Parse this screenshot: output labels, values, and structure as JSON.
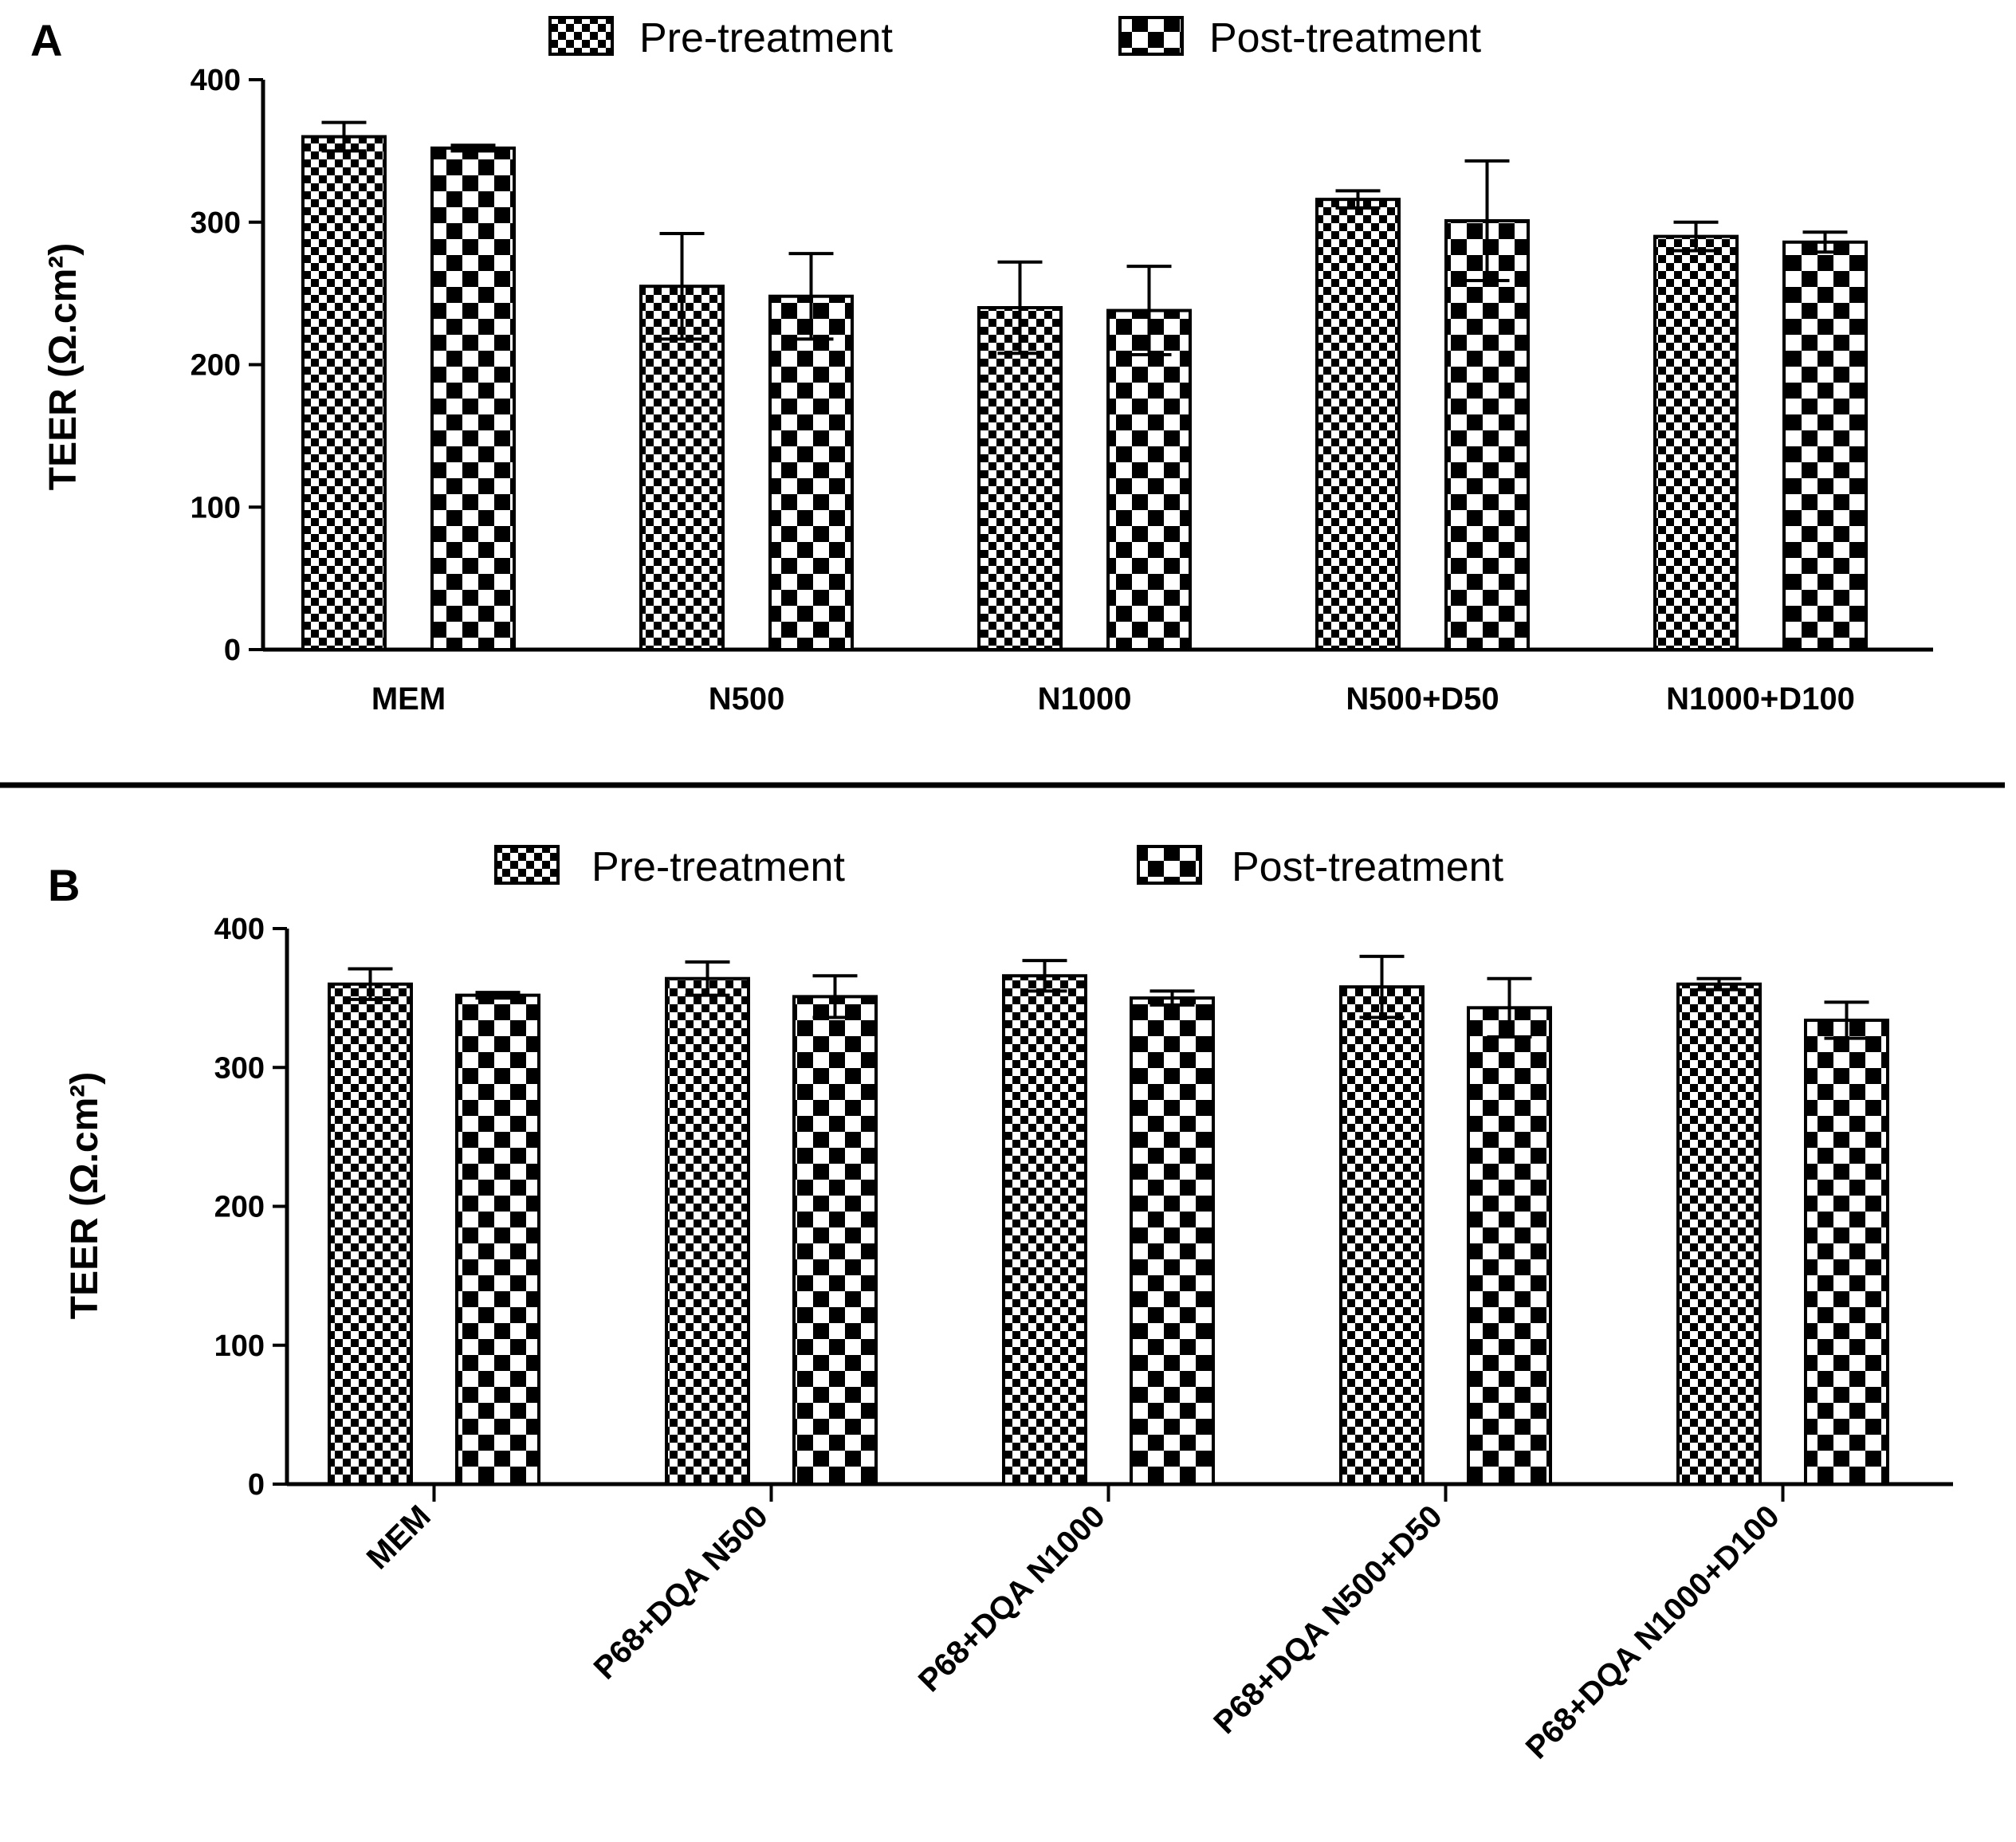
{
  "chart_data": [
    {
      "type": "bar",
      "panel": "A",
      "categories": [
        "MEM",
        "N500",
        "N1000",
        "N500+D50",
        "N1000+D100"
      ],
      "series": [
        {
          "name": "Pre-treatment",
          "values": [
            360,
            255,
            240,
            316,
            290
          ],
          "errors": [
            10,
            37,
            32,
            6,
            10
          ]
        },
        {
          "name": "Post-treatment",
          "values": [
            352,
            248,
            238,
            301,
            286
          ],
          "errors": [
            2,
            30,
            31,
            42,
            7
          ]
        }
      ],
      "title": "",
      "xlabel": "",
      "ylabel": "TEER (Ω.cm²)",
      "ylim": [
        0,
        400
      ],
      "yticks": [
        0,
        100,
        200,
        300,
        400
      ],
      "legend": "top-center"
    },
    {
      "type": "bar",
      "panel": "B",
      "categories": [
        "MEM",
        "P68+DQA N500",
        "P68+DQA N1000",
        "P68+DQA N500+D50",
        "P68+DQA N1000+D100"
      ],
      "series": [
        {
          "name": "Pre-treatment",
          "values": [
            360,
            364,
            366,
            358,
            360
          ],
          "errors": [
            11,
            12,
            11,
            22,
            4
          ]
        },
        {
          "name": "Post-treatment",
          "values": [
            352,
            351,
            350,
            343,
            334
          ],
          "errors": [
            2,
            15,
            5,
            21,
            13
          ]
        }
      ],
      "title": "",
      "xlabel": "",
      "ylabel": "TEER (Ω.cm²)",
      "ylim": [
        0,
        400
      ],
      "yticks": [
        0,
        100,
        200,
        300,
        400
      ],
      "legend": "top-center"
    }
  ]
}
